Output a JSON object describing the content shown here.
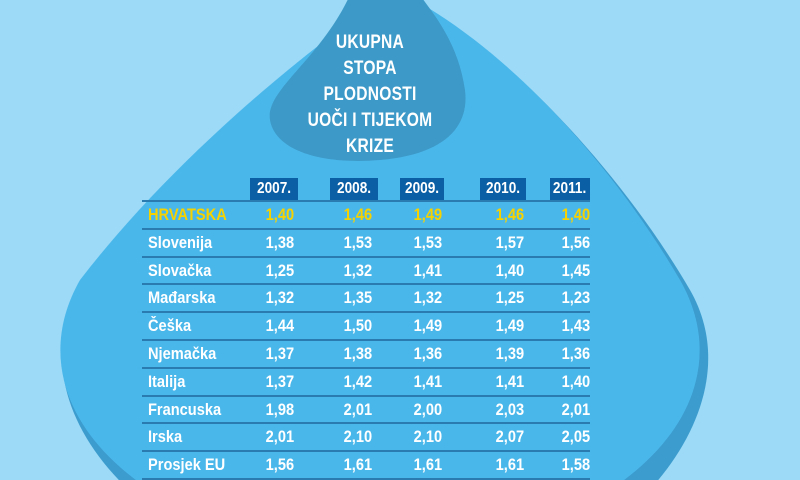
{
  "colors": {
    "background": "#9cdaf7",
    "drop": "#4ab7eb",
    "drop_shadow": "#3c9cce",
    "title_blob": "#3d9ac8",
    "year_header_bg": "#0a5fa5",
    "highlight_text": "#f6d200",
    "text": "#ffffff",
    "rule": "#2a7bb0"
  },
  "title_lines": [
    "UKUPNA",
    "STOPA",
    "PLODNOSTI",
    "UOČI I TIJEKOM",
    "KRIZE"
  ],
  "chart_data": {
    "type": "table",
    "title": "UKUPNA STOPA PLODNOSTI UOČI I TIJEKOM KRIZE",
    "columns": [
      "2007.",
      "2008.",
      "2009.",
      "2010.",
      "2011."
    ],
    "rows": [
      {
        "name": "HRVATSKA",
        "highlight": true,
        "values": [
          "1,40",
          "1,46",
          "1,49",
          "1,46",
          "1,40"
        ]
      },
      {
        "name": "Slovenija",
        "values": [
          "1,38",
          "1,53",
          "1,53",
          "1,57",
          "1,56"
        ]
      },
      {
        "name": "Slovačka",
        "values": [
          "1,25",
          "1,32",
          "1,41",
          "1,40",
          "1,45"
        ]
      },
      {
        "name": "Mađarska",
        "values": [
          "1,32",
          "1,35",
          "1,32",
          "1,25",
          "1,23"
        ]
      },
      {
        "name": "Češka",
        "values": [
          "1,44",
          "1,50",
          "1,49",
          "1,49",
          "1,43"
        ]
      },
      {
        "name": "Njemačka",
        "values": [
          "1,37",
          "1,38",
          "1,36",
          "1,39",
          "1,36"
        ]
      },
      {
        "name": "Italija",
        "values": [
          "1,37",
          "1,42",
          "1,41",
          "1,41",
          "1,40"
        ]
      },
      {
        "name": "Francuska",
        "values": [
          "1,98",
          "2,01",
          "2,00",
          "2,03",
          "2,01"
        ]
      },
      {
        "name": "Irska",
        "values": [
          "2,01",
          "2,10",
          "2,10",
          "2,07",
          "2,05"
        ]
      },
      {
        "name": "Prosjek EU",
        "values": [
          "1,56",
          "1,61",
          "1,61",
          "1,61",
          "1,58"
        ]
      }
    ],
    "numeric": {
      "HRVATSKA": [
        1.4,
        1.46,
        1.49,
        1.46,
        1.4
      ],
      "Slovenija": [
        1.38,
        1.53,
        1.53,
        1.57,
        1.56
      ],
      "Slovačka": [
        1.25,
        1.32,
        1.41,
        1.4,
        1.45
      ],
      "Mađarska": [
        1.32,
        1.35,
        1.32,
        1.25,
        1.23
      ],
      "Češka": [
        1.44,
        1.5,
        1.49,
        1.49,
        1.43
      ],
      "Njemačka": [
        1.37,
        1.38,
        1.36,
        1.39,
        1.36
      ],
      "Italija": [
        1.37,
        1.42,
        1.41,
        1.41,
        1.4
      ],
      "Francuska": [
        1.98,
        2.01,
        2.0,
        2.03,
        2.01
      ],
      "Irska": [
        2.01,
        2.1,
        2.1,
        2.07,
        2.05
      ],
      "Prosjek EU": [
        1.56,
        1.61,
        1.61,
        1.61,
        1.58
      ]
    }
  }
}
